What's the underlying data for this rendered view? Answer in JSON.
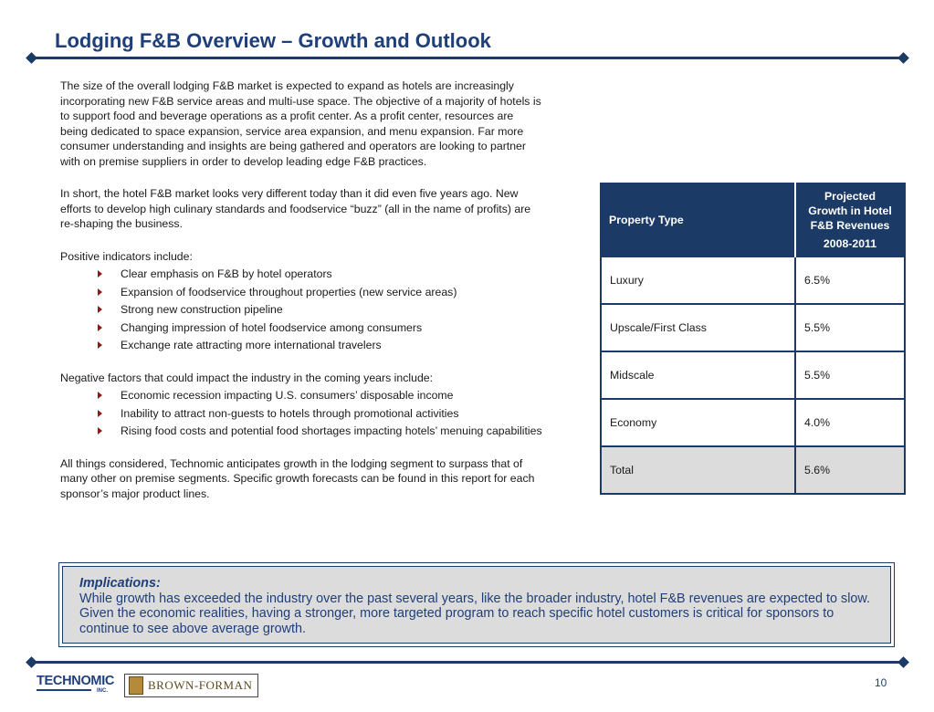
{
  "header": {
    "title": "Lodging F&B Overview – Growth and Outlook"
  },
  "body": {
    "para1": "The size of the overall lodging F&B market is expected to expand as hotels are increasingly incorporating new F&B service areas and multi-use space.  The objective of a majority of hotels is to support food and beverage operations as a profit center.  As a profit center, resources are being dedicated to space expansion, service area expansion, and menu expansion.  Far more consumer understanding and insights are being gathered and operators are looking to partner with on premise suppliers in order to develop leading edge F&B practices.",
    "para2": "In short, the hotel F&B market looks very different today than it did even five years ago.  New efforts to develop high culinary standards and foodservice “buzz” (all in the name of profits) are re-shaping the business.",
    "positive_intro": "Positive indicators include:",
    "positive": [
      "Clear emphasis on F&B by hotel operators",
      "Expansion of foodservice throughout properties (new service areas)",
      "Strong new construction pipeline",
      "Changing impression of hotel foodservice among consumers",
      "Exchange rate attracting more international travelers"
    ],
    "negative_intro": "Negative factors that could impact the industry in the coming years include:",
    "negative": [
      "Economic recession impacting U.S. consumers’ disposable income",
      "Inability to attract non-guests to hotels through promotional activities",
      "Rising food costs and potential food shortages impacting hotels’ menuing capabilities"
    ],
    "conclusion": "All things considered, Technomic anticipates growth in the lodging segment to surpass that of many other on premise segments.  Specific growth forecasts can be found in this report for each sponsor’s major product lines."
  },
  "table": {
    "col1_header": "Property Type",
    "col2_header": "Projected Growth in Hotel F&B Revenues",
    "col2_years": "2008-2011",
    "rows": [
      {
        "type": "Luxury",
        "growth": "6.5%"
      },
      {
        "type": "Upscale/First Class",
        "growth": "5.5%"
      },
      {
        "type": "Midscale",
        "growth": "5.5%"
      },
      {
        "type": "Economy",
        "growth": "4.0%"
      },
      {
        "type": "Total",
        "growth": "5.6%"
      }
    ]
  },
  "implications": {
    "heading": "Implications:",
    "text": "While growth has exceeded the industry over the past several years, like the broader industry, hotel F&B revenues are expected to slow. Given the economic realities, having a stronger, more targeted program to reach specific hotel customers is critical for sponsors to continue to see above average growth."
  },
  "footer": {
    "logo1": "TECHNOMIC",
    "logo1_suffix": "INC.",
    "logo2": "BROWN-FORMAN",
    "page_number": "10"
  },
  "colors": {
    "navy": "#1c3a66",
    "title_blue": "#1f3f7a",
    "bullet_red": "#8b1a1a",
    "shade": "#dcdcdc"
  }
}
